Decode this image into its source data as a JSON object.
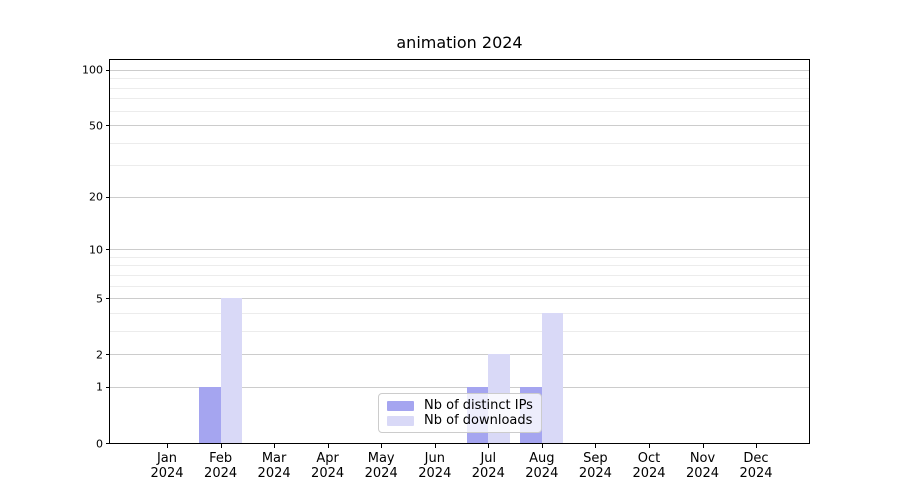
{
  "figure": {
    "title": "animation 2024"
  },
  "chart_data": {
    "type": "bar",
    "title": "animation 2024",
    "yscale": "log1p",
    "categories": [
      "Jan",
      "Feb",
      "Mar",
      "Apr",
      "May",
      "Jun",
      "Jul",
      "Aug",
      "Sep",
      "Oct",
      "Nov",
      "Dec"
    ],
    "x_year_label": "2024",
    "series": [
      {
        "name": "Nb of distinct IPs",
        "color": "#a5a5f0",
        "values": [
          0,
          1,
          0,
          0,
          0,
          0,
          1,
          1,
          0,
          0,
          0,
          0
        ]
      },
      {
        "name": "Nb of downloads",
        "color": "#d9d9f7",
        "values": [
          0,
          5,
          0,
          0,
          0,
          0,
          2,
          4,
          0,
          0,
          0,
          0
        ]
      }
    ],
    "yticks": [
      0,
      1,
      2,
      5,
      10,
      20,
      50,
      100
    ],
    "minor_gridlines": [
      3,
      4,
      6,
      7,
      8,
      9,
      30,
      40,
      60,
      70,
      80,
      90
    ],
    "ylim": [
      0,
      113
    ],
    "grid": true,
    "legend_position": "lower center inside plot",
    "colors": {
      "bar_distinct_ips": "#a5a5f0",
      "bar_downloads": "#d9d9f7",
      "major_grid": "#cccccc",
      "minor_grid": "#ececec",
      "axis": "#000000",
      "text": "#000000",
      "background": "#ffffff"
    }
  }
}
